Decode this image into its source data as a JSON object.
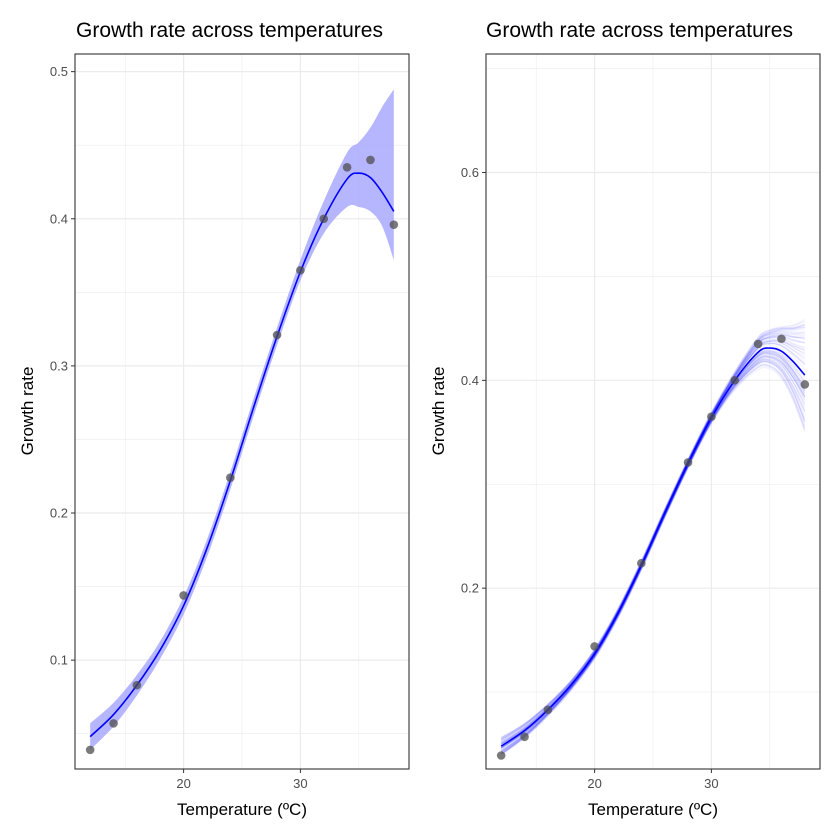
{
  "chart_data": [
    {
      "type": "line",
      "title": "Growth rate across temperatures",
      "xlabel": "Temperature (ºC)",
      "ylabel": "Growth rate",
      "xlim": [
        10.7,
        39.3
      ],
      "ylim": [
        0.026,
        0.512
      ],
      "xticks": [
        20,
        30
      ],
      "yticks": [
        0.1,
        0.2,
        0.3,
        0.4,
        0.5
      ],
      "grid": true,
      "legend": "none",
      "colors": {
        "line": "#0000ff",
        "band": "#a9a9ff",
        "points": "#4d4d4d",
        "panel_border": "#333333",
        "grid": "#ebebeb"
      },
      "points": {
        "x": [
          12,
          14,
          16,
          20,
          24,
          28,
          30,
          32,
          34,
          36,
          38
        ],
        "y": [
          0.039,
          0.057,
          0.083,
          0.144,
          0.224,
          0.321,
          0.365,
          0.4,
          0.435,
          0.44,
          0.396
        ]
      },
      "fit": {
        "x": [
          12,
          14,
          16,
          18,
          20,
          22,
          24,
          26,
          28,
          30,
          32,
          34,
          35,
          36,
          37,
          38
        ],
        "y": [
          0.048,
          0.063,
          0.083,
          0.107,
          0.137,
          0.176,
          0.222,
          0.272,
          0.32,
          0.364,
          0.4,
          0.427,
          0.431,
          0.428,
          0.418,
          0.405
        ],
        "lower": [
          0.039,
          0.055,
          0.076,
          0.101,
          0.131,
          0.17,
          0.216,
          0.266,
          0.314,
          0.358,
          0.39,
          0.408,
          0.408,
          0.405,
          0.395,
          0.372
        ],
        "upper": [
          0.057,
          0.071,
          0.09,
          0.113,
          0.143,
          0.182,
          0.228,
          0.278,
          0.326,
          0.372,
          0.412,
          0.445,
          0.452,
          0.462,
          0.476,
          0.488
        ]
      }
    },
    {
      "type": "line",
      "title": "Growth rate across temperatures",
      "xlabel": "Temperature (ºC)",
      "ylabel": "Growth rate",
      "xlim": [
        10.7,
        39.3
      ],
      "ylim": [
        0.026,
        0.714
      ],
      "xticks": [
        20,
        30
      ],
      "yticks": [
        0.2,
        0.4,
        0.6
      ],
      "grid": true,
      "legend": "none",
      "colors": {
        "line": "#0000ff",
        "bootstrap": "#0000ff",
        "points": "#4d4d4d",
        "panel_border": "#333333",
        "grid": "#ebebeb"
      },
      "points": {
        "x": [
          12,
          14,
          16,
          20,
          24,
          28,
          30,
          32,
          34,
          36,
          38
        ],
        "y": [
          0.039,
          0.057,
          0.083,
          0.144,
          0.224,
          0.321,
          0.365,
          0.4,
          0.435,
          0.44,
          0.396
        ]
      },
      "fit": {
        "x": [
          12,
          14,
          16,
          18,
          20,
          22,
          24,
          26,
          28,
          30,
          32,
          34,
          35,
          36,
          37,
          38
        ],
        "y": [
          0.048,
          0.063,
          0.083,
          0.107,
          0.137,
          0.176,
          0.222,
          0.272,
          0.32,
          0.364,
          0.4,
          0.427,
          0.431,
          0.428,
          0.418,
          0.405
        ],
        "lower": [
          0.039,
          0.055,
          0.076,
          0.101,
          0.131,
          0.17,
          0.216,
          0.266,
          0.314,
          0.358,
          0.39,
          0.408,
          0.408,
          0.405,
          0.395,
          0.372
        ],
        "upper": [
          0.057,
          0.071,
          0.09,
          0.113,
          0.143,
          0.182,
          0.228,
          0.278,
          0.326,
          0.372,
          0.412,
          0.445,
          0.452,
          0.462,
          0.476,
          0.488
        ]
      }
    }
  ]
}
